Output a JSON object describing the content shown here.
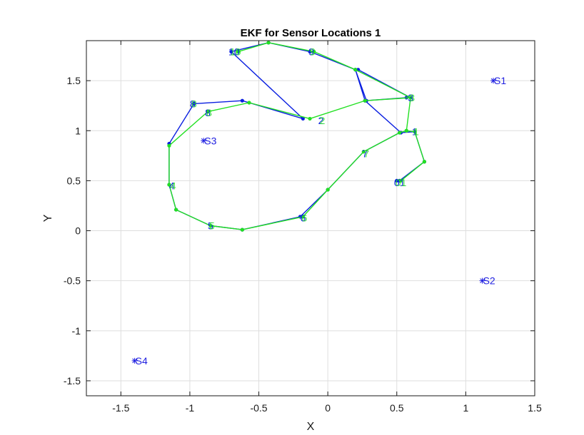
{
  "chart_data": {
    "type": "line",
    "title": "EKF for Sensor Locations 1",
    "xlabel": "X",
    "ylabel": "Y",
    "xlim": [
      -1.75,
      1.5
    ],
    "ylim": [
      -1.65,
      1.9
    ],
    "xticks": [
      -1.5,
      -1,
      -0.5,
      0,
      0.5,
      1,
      1.5
    ],
    "xtick_labels": [
      "-1.5",
      "-1",
      "-0.5",
      "0",
      "0.5",
      "1",
      "1.5"
    ],
    "yticks": [
      -1.5,
      -1,
      -0.5,
      0,
      0.5,
      1,
      1.5
    ],
    "ytick_labels": [
      "-1.5",
      "-1",
      "-0.5",
      "0",
      "0.5",
      "1",
      "1.5"
    ],
    "grid": true,
    "colors": {
      "estimate": "#0a1fe0",
      "truth": "#22e022",
      "sensor": "#1f1fe0"
    },
    "series": [
      {
        "color": "#0a1fe0",
        "x": [
          0.5,
          0.52,
          0.7,
          0.63,
          0.53,
          0.27,
          0.2,
          0.22,
          0.6,
          0.57,
          0.27,
          0.28,
          0.2,
          -0.13,
          -0.43,
          -0.7,
          -0.18,
          -0.62,
          -0.97,
          -1.15,
          -1.15,
          -1.1,
          -0.85,
          -0.62,
          -0.2,
          0.0,
          0.26,
          0.52
        ],
        "y": [
          0.5,
          0.5,
          0.69,
          0.99,
          0.98,
          1.3,
          1.61,
          1.61,
          1.33,
          1.33,
          1.3,
          1.3,
          1.61,
          1.79,
          1.88,
          1.79,
          1.12,
          1.3,
          1.27,
          0.87,
          0.46,
          0.21,
          0.05,
          0.01,
          0.14,
          0.41,
          0.79,
          0.98
        ]
      },
      {
        "color": "#22e022",
        "x": [
          0.53,
          0.7,
          0.63,
          0.57,
          0.6,
          0.27,
          -0.13,
          -0.57,
          -0.87,
          -1.15,
          -1.15,
          -1.1,
          -0.85,
          -0.62,
          -0.18,
          0.0,
          0.26,
          0.52,
          0.57,
          0.6,
          0.2,
          -0.1,
          -0.43,
          -0.65
        ],
        "y": [
          0.5,
          0.69,
          0.99,
          1.0,
          1.33,
          1.3,
          1.12,
          1.28,
          1.19,
          0.85,
          0.46,
          0.21,
          0.05,
          0.01,
          0.14,
          0.41,
          0.79,
          0.98,
          1.0,
          1.33,
          1.61,
          1.79,
          1.88,
          1.79
        ]
      }
    ],
    "waypoints": [
      {
        "label": "1",
        "x": 0.63,
        "y": 0.99
      },
      {
        "label": "2",
        "x": -0.05,
        "y": 1.1
      },
      {
        "label": "3",
        "x": 0.6,
        "y": 1.33
      },
      {
        "label": "4",
        "x": -1.13,
        "y": 0.45
      },
      {
        "label": "5",
        "x": -0.85,
        "y": 0.05
      },
      {
        "label": "6",
        "x": -0.18,
        "y": 0.13
      },
      {
        "label": "7",
        "x": 0.27,
        "y": 0.77
      },
      {
        "label": "8",
        "x": -0.98,
        "y": 1.27
      },
      {
        "label": "8",
        "x": -0.87,
        "y": 1.18
      },
      {
        "label": "9",
        "x": -0.12,
        "y": 1.79
      },
      {
        "label": "10",
        "x": -0.68,
        "y": 1.79
      },
      {
        "label": "01",
        "x": 0.52,
        "y": 0.48
      }
    ],
    "sensors": [
      {
        "label": "S1",
        "x": 1.2,
        "y": 1.5
      },
      {
        "label": "S2",
        "x": 1.12,
        "y": -0.5
      },
      {
        "label": "S3",
        "x": -0.9,
        "y": 0.9
      },
      {
        "label": "S4",
        "x": -1.4,
        "y": -1.3
      }
    ]
  }
}
